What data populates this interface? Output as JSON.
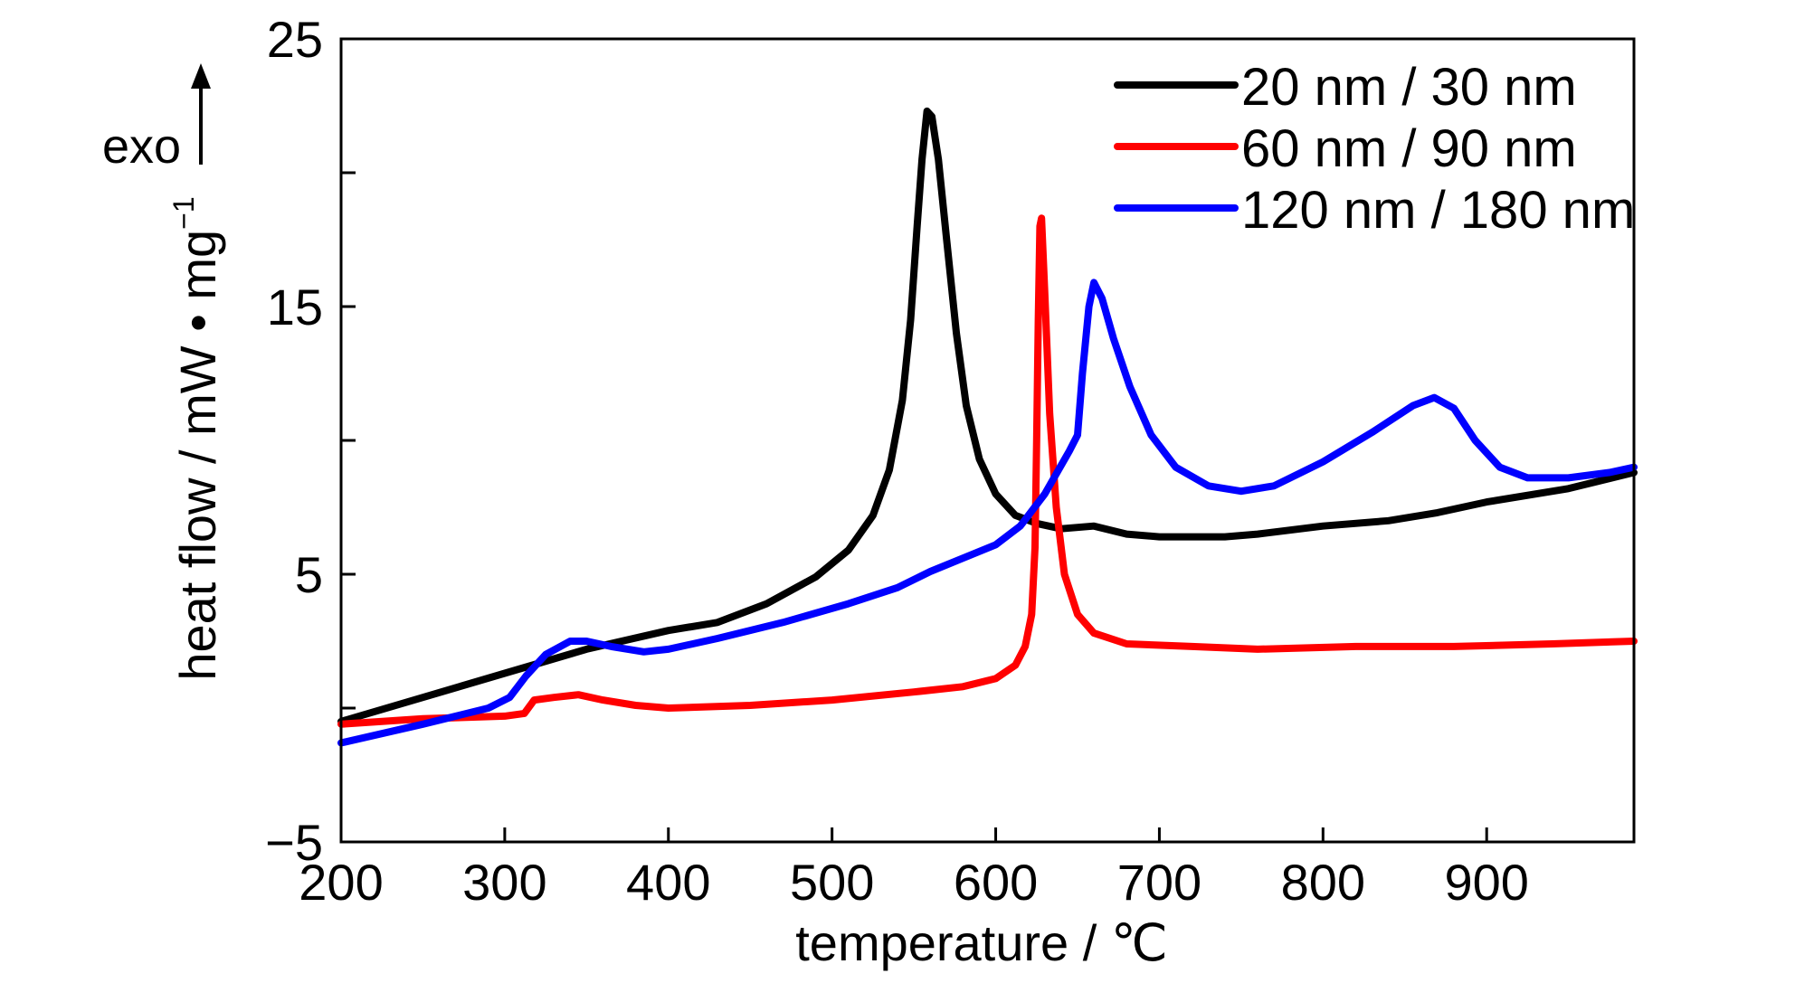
{
  "chart_data": {
    "type": "line",
    "xlabel": "temperature / ℃",
    "ylabel": "heat flow / mW • mg",
    "ylabel_sup": "−1",
    "annotation": "exo",
    "xlim": [
      200,
      990
    ],
    "ylim": [
      -5,
      25
    ],
    "xticks": [
      200,
      300,
      400,
      500,
      600,
      700,
      800,
      900
    ],
    "xtick_labels": [
      "200",
      "300",
      "400",
      "500",
      "600",
      "700",
      "800",
      "900"
    ],
    "yticks_labeled": [
      -5,
      5,
      15,
      25
    ],
    "ytick_labels": [
      "−5",
      "5",
      "15",
      "25"
    ],
    "yticks_minor": [
      0,
      10,
      20
    ],
    "grid": false,
    "legend_position": "top-right",
    "series": [
      {
        "name": "20 nm / 30 nm",
        "color": "#000000",
        "points": [
          [
            200,
            -0.5
          ],
          [
            250,
            0.4
          ],
          [
            300,
            1.3
          ],
          [
            350,
            2.2
          ],
          [
            400,
            2.9
          ],
          [
            430,
            3.2
          ],
          [
            460,
            3.9
          ],
          [
            490,
            4.9
          ],
          [
            510,
            5.9
          ],
          [
            525,
            7.2
          ],
          [
            535,
            8.9
          ],
          [
            543,
            11.5
          ],
          [
            548,
            14.5
          ],
          [
            552,
            18.0
          ],
          [
            555,
            20.5
          ],
          [
            558,
            22.3
          ],
          [
            561,
            22.1
          ],
          [
            565,
            20.5
          ],
          [
            570,
            17.5
          ],
          [
            576,
            14.0
          ],
          [
            582,
            11.3
          ],
          [
            590,
            9.3
          ],
          [
            600,
            8.0
          ],
          [
            612,
            7.2
          ],
          [
            625,
            6.9
          ],
          [
            640,
            6.7
          ],
          [
            660,
            6.8
          ],
          [
            680,
            6.5
          ],
          [
            700,
            6.4
          ],
          [
            740,
            6.4
          ],
          [
            760,
            6.5
          ],
          [
            800,
            6.8
          ],
          [
            840,
            7.0
          ],
          [
            870,
            7.3
          ],
          [
            900,
            7.7
          ],
          [
            950,
            8.2
          ],
          [
            990,
            8.8
          ]
        ]
      },
      {
        "name": "60 nm / 90 nm",
        "color": "#ff0000",
        "points": [
          [
            200,
            -0.6
          ],
          [
            250,
            -0.4
          ],
          [
            300,
            -0.3
          ],
          [
            312,
            -0.2
          ],
          [
            318,
            0.3
          ],
          [
            330,
            0.4
          ],
          [
            345,
            0.5
          ],
          [
            360,
            0.3
          ],
          [
            380,
            0.1
          ],
          [
            400,
            0.0
          ],
          [
            450,
            0.1
          ],
          [
            500,
            0.3
          ],
          [
            550,
            0.6
          ],
          [
            580,
            0.8
          ],
          [
            600,
            1.1
          ],
          [
            612,
            1.6
          ],
          [
            618,
            2.3
          ],
          [
            622,
            3.5
          ],
          [
            624,
            6.0
          ],
          [
            625,
            10.0
          ],
          [
            626,
            14.5
          ],
          [
            627,
            18.0
          ],
          [
            628,
            18.3
          ],
          [
            630,
            15.5
          ],
          [
            633,
            11.0
          ],
          [
            637,
            7.5
          ],
          [
            642,
            5.0
          ],
          [
            650,
            3.5
          ],
          [
            660,
            2.8
          ],
          [
            680,
            2.4
          ],
          [
            720,
            2.3
          ],
          [
            760,
            2.2
          ],
          [
            820,
            2.3
          ],
          [
            880,
            2.3
          ],
          [
            940,
            2.4
          ],
          [
            990,
            2.5
          ]
        ]
      },
      {
        "name": "120 nm / 180 nm",
        "color": "#0000ff",
        "points": [
          [
            200,
            -1.3
          ],
          [
            250,
            -0.6
          ],
          [
            290,
            0.0
          ],
          [
            303,
            0.4
          ],
          [
            313,
            1.2
          ],
          [
            325,
            2.0
          ],
          [
            340,
            2.5
          ],
          [
            350,
            2.5
          ],
          [
            365,
            2.3
          ],
          [
            385,
            2.1
          ],
          [
            400,
            2.2
          ],
          [
            430,
            2.6
          ],
          [
            470,
            3.2
          ],
          [
            510,
            3.9
          ],
          [
            540,
            4.5
          ],
          [
            560,
            5.1
          ],
          [
            580,
            5.6
          ],
          [
            600,
            6.1
          ],
          [
            615,
            6.8
          ],
          [
            630,
            8.0
          ],
          [
            645,
            9.6
          ],
          [
            650,
            10.2
          ],
          [
            653,
            12.5
          ],
          [
            657,
            15.0
          ],
          [
            660,
            15.9
          ],
          [
            665,
            15.3
          ],
          [
            672,
            13.8
          ],
          [
            682,
            12.0
          ],
          [
            695,
            10.2
          ],
          [
            710,
            9.0
          ],
          [
            730,
            8.3
          ],
          [
            750,
            8.1
          ],
          [
            770,
            8.3
          ],
          [
            800,
            9.2
          ],
          [
            830,
            10.3
          ],
          [
            855,
            11.3
          ],
          [
            868,
            11.6
          ],
          [
            880,
            11.2
          ],
          [
            893,
            10.0
          ],
          [
            908,
            9.0
          ],
          [
            925,
            8.6
          ],
          [
            950,
            8.6
          ],
          [
            975,
            8.8
          ],
          [
            990,
            9.0
          ]
        ]
      }
    ]
  }
}
